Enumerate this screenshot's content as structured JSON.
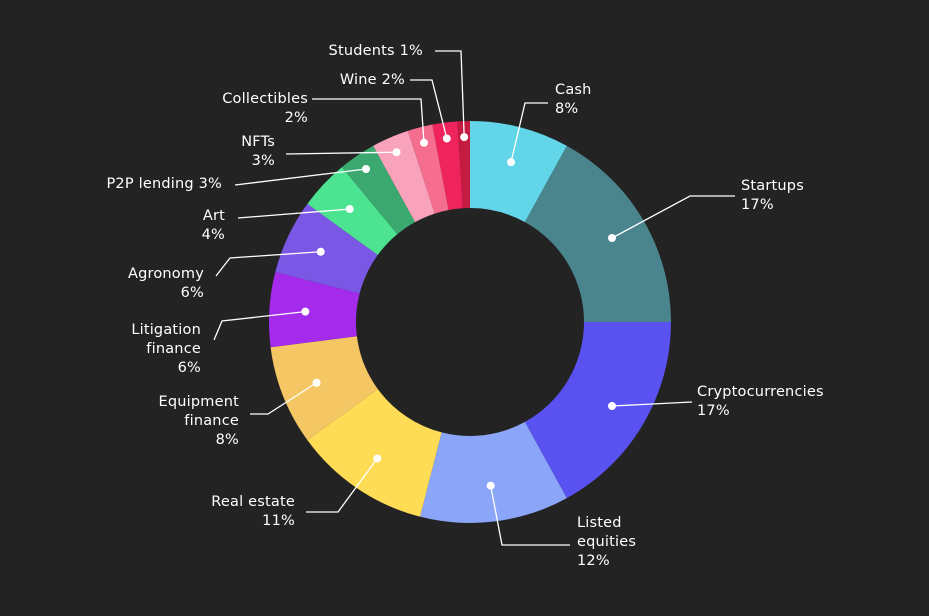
{
  "chart_data": {
    "type": "pie",
    "variant": "donut",
    "legend": "none",
    "colors": {
      "background": "#232323",
      "label_text": "#ffffff",
      "leader_line": "#ffffff"
    },
    "slices": [
      {
        "name": "Cash",
        "value": 8,
        "value_label": "8%",
        "color": "#62D5E8"
      },
      {
        "name": "Startups",
        "value": 17,
        "value_label": "17%",
        "color": "#4A858E"
      },
      {
        "name": "Cryptocurrencies",
        "value": 17,
        "value_label": "17%",
        "color": "#5A51F1"
      },
      {
        "name": "Listed equities",
        "value": 12,
        "value_label": "12%",
        "color": "#8BA5F8"
      },
      {
        "name": "Real estate",
        "value": 11,
        "value_label": "11%",
        "color": "#FFDC55"
      },
      {
        "name": "Equipment finance",
        "value": 8,
        "value_label": "8%",
        "color": "#F5C764"
      },
      {
        "name": "Litigation finance",
        "value": 6,
        "value_label": "6%",
        "color": "#A42BEB"
      },
      {
        "name": "Agronomy",
        "value": 6,
        "value_label": "6%",
        "color": "#7B57E6"
      },
      {
        "name": "Art",
        "value": 4,
        "value_label": "4%",
        "color": "#4DE491"
      },
      {
        "name": "P2P lending",
        "value": 3,
        "value_label": "3%",
        "color": "#3BA96F"
      },
      {
        "name": "NFTs",
        "value": 3,
        "value_label": "3%",
        "color": "#F8A3BB"
      },
      {
        "name": "Collectibles",
        "value": 2,
        "value_label": "2%",
        "color": "#F56D8F"
      },
      {
        "name": "Wine",
        "value": 2,
        "value_label": "2%",
        "color": "#F0245D"
      },
      {
        "name": "Students",
        "value": 1,
        "value_label": "1%",
        "color": "#C51B43"
      }
    ],
    "labels": [
      {
        "lines": [
          "Cash",
          "8%"
        ]
      },
      {
        "lines": [
          "Startups",
          "17%"
        ]
      },
      {
        "lines": [
          "Cryptocurrencies",
          "17%"
        ]
      },
      {
        "lines": [
          "Listed",
          "equities",
          "12%"
        ]
      },
      {
        "lines": [
          "Real estate",
          "11%"
        ]
      },
      {
        "lines": [
          "Equipment",
          "finance",
          "8%"
        ]
      },
      {
        "lines": [
          "Litigation",
          "finance",
          "6%"
        ]
      },
      {
        "lines": [
          "Agronomy",
          "6%"
        ]
      },
      {
        "lines": [
          "Art",
          "4%"
        ]
      },
      {
        "lines": [
          "P2P lending 3%"
        ]
      },
      {
        "lines": [
          "NFTs",
          "3%"
        ]
      },
      {
        "lines": [
          "Collectibles",
          "2%"
        ]
      },
      {
        "lines": [
          "Wine  2%"
        ]
      },
      {
        "lines": [
          "Students  1%"
        ]
      }
    ]
  }
}
